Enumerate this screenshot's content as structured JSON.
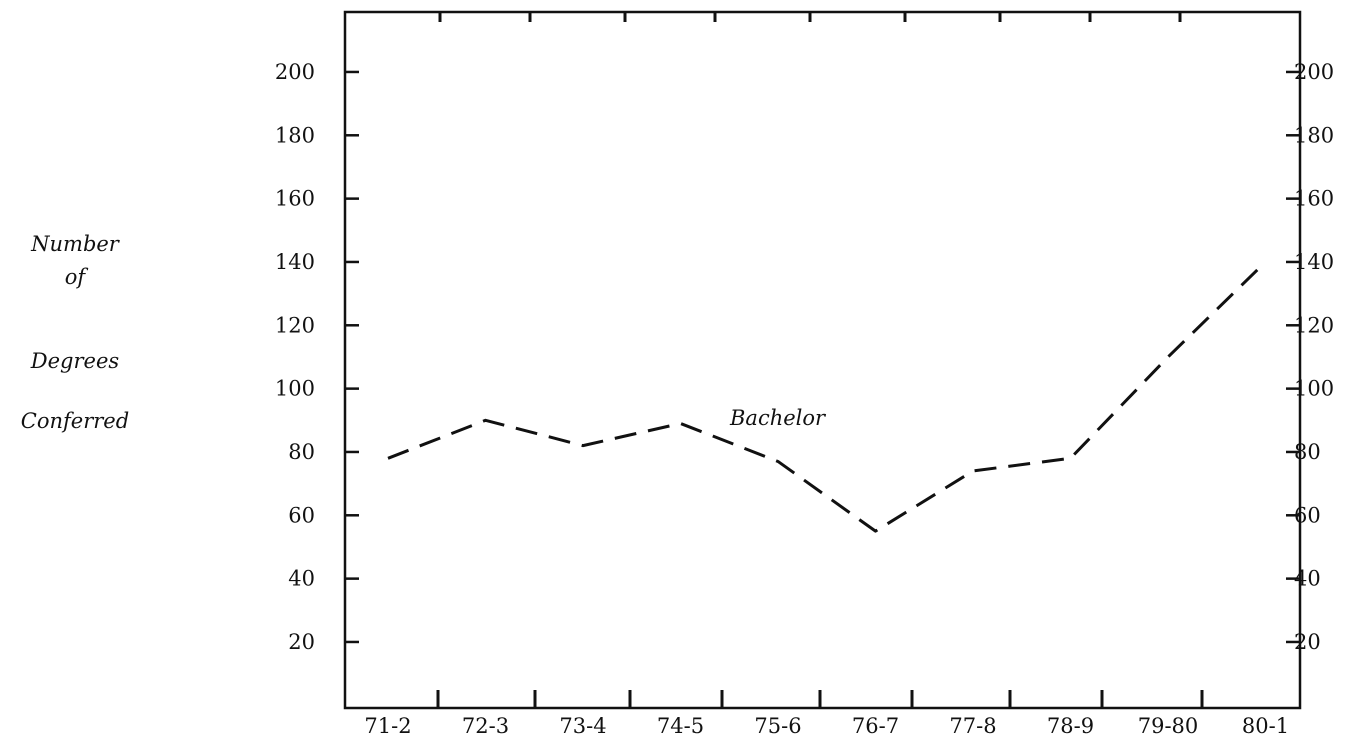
{
  "chart_data": {
    "type": "line",
    "title": "",
    "xlabel": "",
    "ylabel_lines": [
      "Number",
      "of",
      "Degrees",
      "Conferred"
    ],
    "categories": [
      "71-2",
      "72-3",
      "73-4",
      "74-5",
      "75-6",
      "76-7",
      "77-8",
      "78-9",
      "79-80",
      "80-1"
    ],
    "series": [
      {
        "name": "Bachelor",
        "style": "dashed",
        "color": "#111111",
        "values": [
          78,
          90,
          82,
          89,
          77,
          55,
          74,
          78,
          110,
          140
        ]
      }
    ],
    "yticks": [
      20,
      40,
      60,
      80,
      100,
      120,
      140,
      160,
      180,
      200
    ],
    "yticks_right": [
      20,
      40,
      60,
      80,
      100,
      120,
      140,
      160,
      180,
      200
    ],
    "ylim": [
      0,
      220
    ],
    "grid": false,
    "legend": "none"
  }
}
